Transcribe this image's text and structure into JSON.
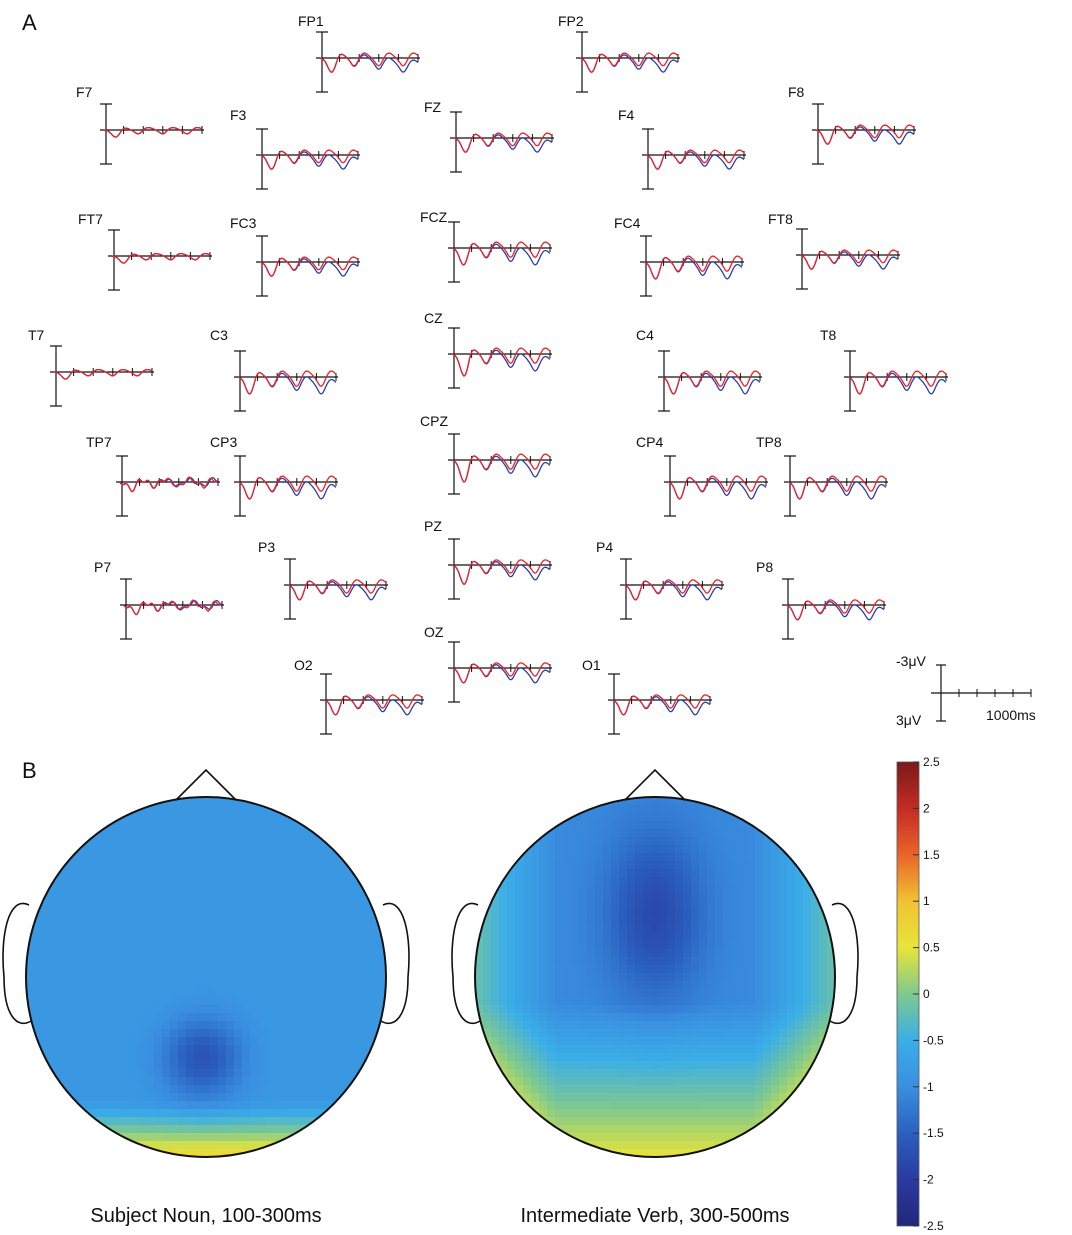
{
  "panels": {
    "a": "A",
    "b": "B"
  },
  "chart_data": [
    {
      "type": "line",
      "panel": "A",
      "x_unit": "ms",
      "x_range": [
        0,
        1000
      ],
      "y_unit": "µV",
      "y_range": [
        3,
        -3
      ],
      "negative_up": true,
      "scale_bar": {
        "y_top": "-3μV",
        "y_bottom": "3μV",
        "x_label": "1000ms",
        "x_ticks": 6
      },
      "series_colors": [
        "#2c3fa8",
        "#e8232b"
      ],
      "electrodes": [
        {
          "name": "FP1",
          "var": "frontal"
        },
        {
          "name": "FP2",
          "var": "frontal"
        },
        {
          "name": "F7",
          "var": "small"
        },
        {
          "name": "F3",
          "var": "frontal"
        },
        {
          "name": "FZ",
          "var": "frontal"
        },
        {
          "name": "F4",
          "var": "frontal"
        },
        {
          "name": "F8",
          "var": "frontal"
        },
        {
          "name": "FT7",
          "var": "small"
        },
        {
          "name": "FC3",
          "var": "frontal"
        },
        {
          "name": "FCZ",
          "var": "central"
        },
        {
          "name": "FC4",
          "var": "central"
        },
        {
          "name": "FT8",
          "var": "frontal"
        },
        {
          "name": "T7",
          "var": "small"
        },
        {
          "name": "C3",
          "var": "central"
        },
        {
          "name": "CZ",
          "var": "central"
        },
        {
          "name": "C4",
          "var": "central"
        },
        {
          "name": "T8",
          "var": "central"
        },
        {
          "name": "TP7",
          "var": "noisy"
        },
        {
          "name": "CP3",
          "var": "central"
        },
        {
          "name": "CPZ",
          "var": "central"
        },
        {
          "name": "CP4",
          "var": "central"
        },
        {
          "name": "TP8",
          "var": "central"
        },
        {
          "name": "P7",
          "var": "noisy"
        },
        {
          "name": "P3",
          "var": "parietal"
        },
        {
          "name": "PZ",
          "var": "parietal"
        },
        {
          "name": "P4",
          "var": "parietal"
        },
        {
          "name": "P8",
          "var": "parietal"
        },
        {
          "name": "O2",
          "var": "parietal"
        },
        {
          "name": "OZ",
          "var": "parietal"
        },
        {
          "name": "O1",
          "var": "parietal"
        }
      ]
    },
    {
      "type": "heatmap",
      "panel": "B",
      "maps": [
        {
          "caption": "Subject Noun, 100-300ms",
          "pattern": "noun"
        },
        {
          "caption": "Intermediate Verb, 300-500ms",
          "pattern": "verb"
        }
      ],
      "colorbar": {
        "min": -2.5,
        "max": 2.5,
        "ticks": [
          "2.5",
          "2",
          "1.5",
          "1",
          "0.5",
          "0",
          "-0.5",
          "-1",
          "-1.5",
          "-2",
          "-2.5"
        ],
        "colors": [
          "#7a1a1a",
          "#c42b24",
          "#e8642a",
          "#f1c232",
          "#e8e43a",
          "#7fc98f",
          "#3aaee8",
          "#3a8fe0",
          "#2a60c0",
          "#2a3aa0",
          "#22287a"
        ]
      }
    }
  ]
}
